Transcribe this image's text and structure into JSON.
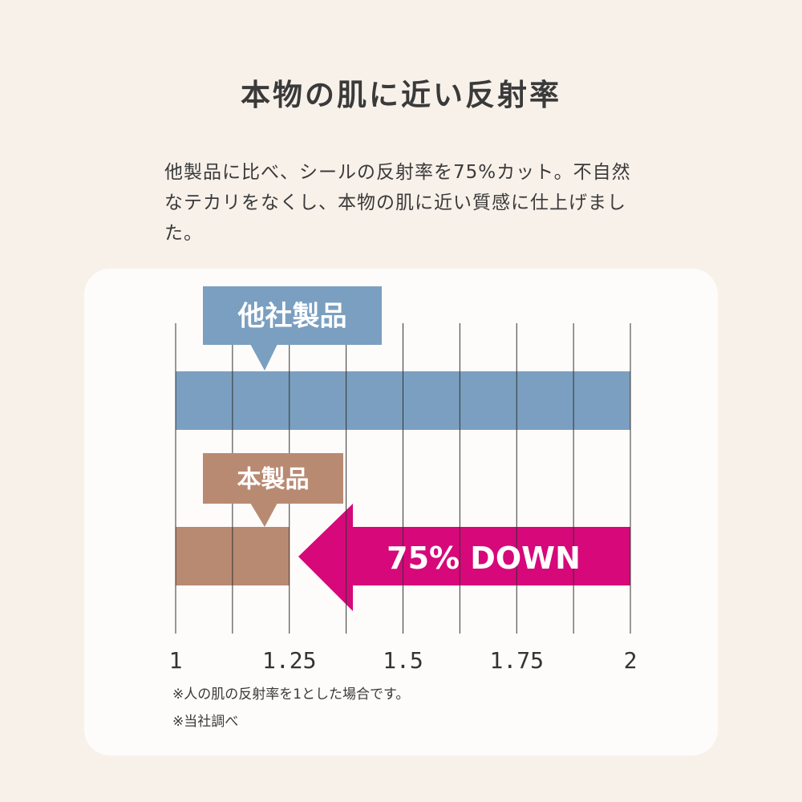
{
  "title": "本物の肌に近い反射率",
  "description": "他製品に比べ、シールの反射率を75%カット。不自然なテカリをなくし、本物の肌に近い質感に仕上げました。",
  "notes": [
    "※人の肌の反射率を1とした場合です。",
    "※当社調べ"
  ],
  "colors": {
    "other": "#7b9fc0",
    "ours": "#b98a72",
    "arrow": "#d6087a",
    "grid": "#333333"
  },
  "chart_data": {
    "type": "bar",
    "orientation": "horizontal",
    "categories": [
      "他社製品",
      "本製品"
    ],
    "values": [
      2,
      1.25
    ],
    "xlim": [
      1,
      2
    ],
    "xticks": [
      1,
      1.25,
      1.5,
      1.75,
      2
    ],
    "xtick_labels": [
      "1",
      "1.25",
      "1.5",
      "1.75",
      "2"
    ],
    "minor_grid_step": 0.125,
    "annotation": "75% DOWN",
    "grid": true
  }
}
